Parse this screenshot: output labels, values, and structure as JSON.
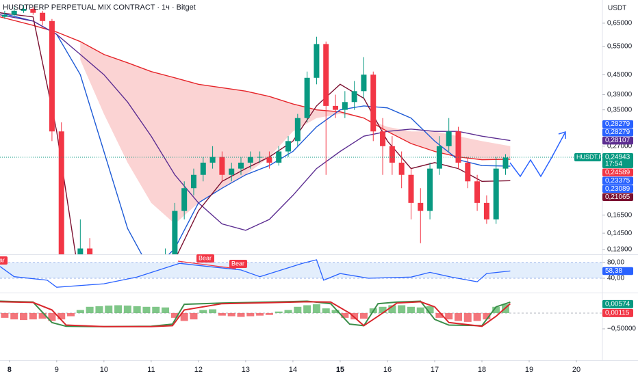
{
  "chart_data": [
    {
      "type": "candlestick",
      "title": "HUSDTPERP PERPETUAL MIX CONTRACT · 1ч · Bitget",
      "axis_unit": "USDT",
      "x": [
        7.9,
        8.1,
        8.3,
        8.5,
        8.7,
        8.9,
        9.1,
        9.3,
        9.5,
        9.7,
        9.9,
        10.1,
        10.3,
        10.5,
        10.7,
        10.9,
        11.1,
        11.3,
        11.5,
        11.7,
        11.9,
        12.1,
        12.3,
        12.5,
        12.7,
        12.9,
        13.1,
        13.3,
        13.5,
        13.7,
        13.9,
        14.1,
        14.3,
        14.5,
        14.7,
        14.9,
        15.1,
        15.3,
        15.5,
        15.7,
        15.9,
        16.1,
        16.3,
        16.5,
        16.7,
        16.9,
        17.1,
        17.3,
        17.5,
        17.7,
        17.9,
        18.1,
        18.3,
        18.5
      ],
      "open": [
        0.68,
        0.69,
        0.71,
        0.72,
        0.7,
        0.66,
        0.3,
        0.11,
        0.1,
        0.13,
        0.11,
        0.1,
        0.09,
        0.09,
        0.1,
        0.1,
        0.11,
        0.11,
        0.12,
        0.17,
        0.2,
        0.22,
        0.24,
        0.25,
        0.22,
        0.23,
        0.24,
        0.25,
        0.25,
        0.24,
        0.26,
        0.28,
        0.33,
        0.44,
        0.56,
        0.36,
        0.35,
        0.37,
        0.4,
        0.45,
        0.3,
        0.27,
        0.24,
        0.22,
        0.18,
        0.17,
        0.23,
        0.27,
        0.3,
        0.24,
        0.21,
        0.18,
        0.16,
        0.23
      ],
      "high": [
        0.71,
        0.73,
        0.74,
        0.73,
        0.71,
        0.67,
        0.32,
        0.12,
        0.16,
        0.14,
        0.12,
        0.11,
        0.1,
        0.11,
        0.11,
        0.12,
        0.12,
        0.13,
        0.18,
        0.21,
        0.23,
        0.25,
        0.27,
        0.26,
        0.24,
        0.25,
        0.26,
        0.26,
        0.26,
        0.27,
        0.29,
        0.34,
        0.46,
        0.59,
        0.57,
        0.39,
        0.4,
        0.43,
        0.51,
        0.46,
        0.33,
        0.29,
        0.26,
        0.23,
        0.2,
        0.24,
        0.29,
        0.33,
        0.31,
        0.25,
        0.22,
        0.19,
        0.25,
        0.255
      ],
      "low": [
        0.67,
        0.68,
        0.7,
        0.69,
        0.64,
        0.28,
        0.1,
        0.09,
        0.1,
        0.1,
        0.09,
        0.08,
        0.08,
        0.09,
        0.09,
        0.1,
        0.1,
        0.11,
        0.12,
        0.16,
        0.19,
        0.21,
        0.23,
        0.21,
        0.21,
        0.22,
        0.23,
        0.24,
        0.23,
        0.235,
        0.25,
        0.27,
        0.32,
        0.42,
        0.22,
        0.33,
        0.33,
        0.35,
        0.38,
        0.28,
        0.22,
        0.22,
        0.2,
        0.16,
        0.135,
        0.16,
        0.22,
        0.26,
        0.23,
        0.2,
        0.17,
        0.155,
        0.155,
        0.22
      ],
      "close": [
        0.69,
        0.71,
        0.72,
        0.7,
        0.66,
        0.3,
        0.11,
        0.1,
        0.13,
        0.11,
        0.1,
        0.09,
        0.09,
        0.1,
        0.1,
        0.11,
        0.11,
        0.12,
        0.17,
        0.2,
        0.22,
        0.24,
        0.25,
        0.22,
        0.23,
        0.24,
        0.25,
        0.25,
        0.24,
        0.26,
        0.28,
        0.33,
        0.44,
        0.56,
        0.36,
        0.35,
        0.37,
        0.4,
        0.45,
        0.3,
        0.27,
        0.24,
        0.22,
        0.18,
        0.17,
        0.23,
        0.27,
        0.3,
        0.24,
        0.21,
        0.18,
        0.16,
        0.23,
        0.249
      ],
      "up_color": "#089981",
      "down_color": "#f23645",
      "xlim": [
        7.8,
        20.55
      ],
      "xticks": [
        8,
        9,
        10,
        11,
        12,
        13,
        14,
        15,
        16,
        17,
        18,
        19,
        20
      ],
      "ylim": [
        0.1247,
        0.767
      ],
      "log_scale": true,
      "yticks": [
        {
          "value": 0.65,
          "label": "0,65000"
        },
        {
          "value": 0.55,
          "label": "0,55000"
        },
        {
          "value": 0.45,
          "label": "0,45000"
        },
        {
          "value": 0.39,
          "label": "0,39000"
        },
        {
          "value": 0.35,
          "label": "0,35000"
        },
        {
          "value": 0.27,
          "label": "0,27000"
        },
        {
          "value": 0.165,
          "label": "0,16500"
        },
        {
          "value": 0.145,
          "label": "0,14500"
        },
        {
          "value": 0.129,
          "label": "0,12900"
        }
      ],
      "overlays": {
        "x": [
          7.8,
          8.5,
          9,
          9.5,
          10,
          10.5,
          11,
          11.5,
          12,
          12.5,
          13,
          13.5,
          14,
          14.5,
          15,
          15.5,
          16,
          16.5,
          17,
          17.5,
          18,
          18.6
        ],
        "series": [
          {
            "color": "#e5252a",
            "values": [
              0.68,
              0.64,
              0.61,
              0.57,
              0.52,
              0.49,
              0.46,
              0.44,
              0.42,
              0.41,
              0.4,
              0.385,
              0.365,
              0.35,
              0.345,
              0.33,
              0.3,
              0.275,
              0.26,
              0.25,
              0.245,
              0.246
            ]
          },
          {
            "color": "#1e5bd6",
            "values": [
              0.7,
              0.66,
              0.6,
              0.45,
              0.26,
              0.15,
              0.11,
              0.13,
              0.18,
              0.2,
              0.22,
              0.235,
              0.26,
              0.31,
              0.35,
              0.36,
              0.355,
              0.33,
              0.28,
              0.245,
              0.235,
              0.234
            ]
          },
          {
            "color": "#5c2d91",
            "values": [
              0.69,
              0.66,
              0.6,
              0.52,
              0.45,
              0.37,
              0.29,
              0.22,
              0.18,
              0.155,
              0.148,
              0.16,
              0.19,
              0.23,
              0.26,
              0.29,
              0.3,
              0.305,
              0.3,
              0.3,
              0.29,
              0.281
            ]
          },
          {
            "color": "#7b1030",
            "values": [
              0.7,
              0.68,
              0.3,
              0.1,
              0.09,
              0.09,
              0.1,
              0.12,
              0.17,
              0.21,
              0.23,
              0.25,
              0.28,
              0.36,
              0.42,
              0.38,
              0.28,
              0.23,
              0.24,
              0.23,
              0.21,
              0.211
            ]
          }
        ]
      },
      "cloud": {
        "color": "#f9c4c4",
        "values": [
          null,
          null,
          null,
          0.5,
          0.34,
          0.24,
          0.18,
          0.155,
          0.18,
          0.2,
          0.22,
          0.25,
          0.3,
          0.33,
          0.34,
          0.33,
          0.31,
          0.3,
          0.3,
          0.29,
          0.28,
          0.27
        ]
      },
      "symbol_tag": "HUSDT.P",
      "countdown": "17:54",
      "current_tag": 3,
      "price_tags": [
        {
          "value": 0.28279,
          "label": "0,28279",
          "color": "#2962ff"
        },
        {
          "value": 0.28279,
          "label": "0,28279",
          "color": "#2962ff"
        },
        {
          "value": 0.28107,
          "label": "0,28107",
          "color": "#5c2d91"
        },
        {
          "value": 0.24943,
          "label": "0,24943",
          "color": "#089981"
        },
        {
          "value": 0.24589,
          "label": "0,24589",
          "color": "#f23645"
        },
        {
          "value": 0.23375,
          "label": "0,23375",
          "color": "#2962ff"
        },
        {
          "value": 0.23089,
          "label": "0,23089",
          "color": "#2962ff"
        },
        {
          "value": 0.21065,
          "label": "0,21065",
          "color": "#7b1030"
        }
      ]
    },
    {
      "type": "line",
      "x": [
        7.8,
        8.1,
        8.8,
        9.0,
        10.0,
        10.7,
        11.6,
        12.2,
        12.9,
        13.3,
        14.2,
        14.5,
        14.65,
        15.0,
        15.6,
        16.5,
        16.9,
        17.35,
        17.9,
        18.1,
        18.6
      ],
      "values": [
        70,
        44,
        35,
        17,
        26,
        43,
        78,
        70,
        61,
        44,
        78,
        87,
        35,
        52,
        40,
        43,
        55,
        43,
        31,
        52,
        58.38
      ],
      "color": "#2962ff",
      "ylim": [
        3.5,
        100.9
      ],
      "yticks": [
        {
          "value": 80,
          "label": "80,00"
        },
        {
          "value": 40,
          "label": "40,00"
        }
      ],
      "band_color": "#e3eefc",
      "value_tag": {
        "value": 58.38,
        "label": "58,38"
      },
      "annotations": [
        "Bear",
        "Bear",
        "Bear"
      ]
    },
    {
      "type": "bar",
      "x": [
        7.9,
        8.1,
        8.3,
        8.5,
        8.7,
        8.9,
        9.1,
        9.3,
        9.5,
        9.7,
        9.9,
        10.1,
        10.3,
        10.5,
        10.7,
        10.9,
        11.1,
        11.3,
        11.5,
        11.7,
        11.9,
        12.1,
        12.3,
        12.5,
        12.7,
        12.9,
        13.1,
        13.3,
        13.5,
        13.7,
        13.9,
        14.1,
        14.3,
        14.5,
        14.7,
        14.9,
        15.1,
        15.3,
        15.5,
        15.7,
        15.9,
        16.1,
        16.3,
        16.5,
        16.7,
        16.9,
        17.1,
        17.3,
        17.5,
        17.7,
        17.9,
        18.1,
        18.3,
        18.5
      ],
      "values": [
        -0.15,
        -0.2,
        -0.22,
        -0.2,
        -0.18,
        -0.25,
        -0.2,
        -0.1,
        0.1,
        0.2,
        0.22,
        0.24,
        0.25,
        0.24,
        0.22,
        0.2,
        0.2,
        0.18,
        -0.15,
        -0.25,
        -0.2,
        0.1,
        0.12,
        -0.08,
        -0.1,
        -0.12,
        -0.1,
        -0.08,
        -0.06,
        0.05,
        0.1,
        0.2,
        0.25,
        0.28,
        0.15,
        0.1,
        -0.15,
        -0.2,
        -0.18,
        0.15,
        0.2,
        0.25,
        0.25,
        0.2,
        0.18,
        0.22,
        -0.15,
        -0.2,
        -0.25,
        -0.28,
        -0.25,
        -0.2,
        0.2,
        0.28
      ],
      "up_color": "#5fb86a",
      "down_color": "#f0535a",
      "lines": {
        "x": [
          7.8,
          8.5,
          8.9,
          9.2,
          10,
          11,
          11.45,
          11.7,
          12.5,
          13.5,
          14.3,
          14.8,
          15.2,
          15.5,
          15.8,
          16.2,
          16.7,
          17.0,
          17.3,
          18.0,
          18.3,
          18.6
        ],
        "series": [
          {
            "color": "#3b8e4a",
            "values": [
              0.38,
              0.35,
              -0.3,
              -0.42,
              -0.43,
              -0.42,
              -0.35,
              0.28,
              0.32,
              0.35,
              0.38,
              0.3,
              -0.35,
              -0.4,
              0.3,
              0.35,
              0.38,
              -0.2,
              -0.38,
              -0.4,
              0.2,
              0.35
            ]
          },
          {
            "color": "#d9262c",
            "values": [
              0.36,
              0.34,
              0.1,
              -0.38,
              -0.43,
              -0.43,
              -0.4,
              0.1,
              0.3,
              0.33,
              0.36,
              0.35,
              0,
              -0.4,
              -0.1,
              0.32,
              0.36,
              0.2,
              -0.3,
              -0.42,
              -0.1,
              0.3
            ]
          }
        ]
      },
      "ylim": [
        -0.696,
        0.652
      ],
      "yticks": [
        {
          "value": -0.5,
          "label": "−0,50000"
        }
      ],
      "value_tags": [
        {
          "value": 0.00574,
          "label": "0,00574",
          "color": "#089981"
        },
        {
          "value": 0.00115,
          "label": "0,00115",
          "color": "#f23645"
        }
      ]
    }
  ]
}
